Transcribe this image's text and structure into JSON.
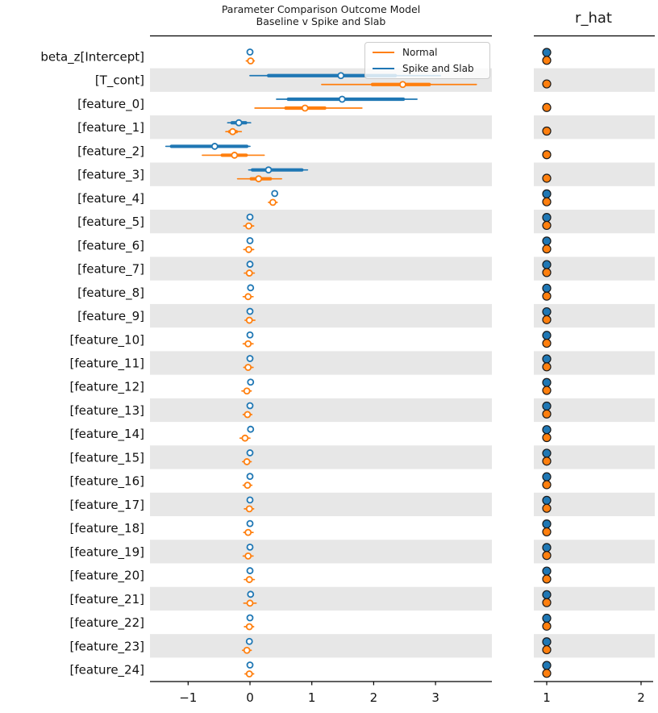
{
  "chart_data": {
    "type": "forest",
    "title_line1": "Parameter Comparison Outcome Model",
    "title_line2": "Baseline v Spike and Slab",
    "right_panel_title": "r_hat",
    "series": [
      {
        "key": "normal",
        "name": "Normal",
        "color": "#ff7f0e"
      },
      {
        "key": "spike",
        "name": "Spike and Slab",
        "color": "#1f77b4"
      }
    ],
    "band_color": "#e7e7e7",
    "left_axis": {
      "ticks": [
        -1,
        0,
        1,
        2,
        3
      ],
      "xlim": [
        -1.62,
        3.92
      ]
    },
    "right_axis": {
      "ticks": [
        1,
        2
      ],
      "xlim": [
        0.86,
        2.13
      ]
    },
    "rows": [
      {
        "label": "beta_z[Intercept]",
        "spike": {
          "median": 0.0,
          "ci": [
            -0.03,
            0.03
          ],
          "iqr": [
            -0.01,
            0.01
          ],
          "r_hat": 1.0
        },
        "normal": {
          "median": 0.01,
          "ci": [
            -0.06,
            0.07
          ],
          "iqr": [
            -0.02,
            0.03
          ],
          "r_hat": 1.0
        }
      },
      {
        "label": "[T_cont]",
        "spike": {
          "median": 1.47,
          "ci": [
            0.0,
            3.08
          ],
          "iqr": [
            0.3,
            2.35
          ],
          "r_hat": null
        },
        "normal": {
          "median": 2.47,
          "ci": [
            1.16,
            3.66
          ],
          "iqr": [
            1.98,
            2.9
          ],
          "r_hat": 1.0
        }
      },
      {
        "label": "[feature_0]",
        "spike": {
          "median": 1.49,
          "ci": [
            0.43,
            2.7
          ],
          "iqr": [
            0.62,
            2.48
          ],
          "r_hat": null
        },
        "normal": {
          "median": 0.89,
          "ci": [
            0.08,
            1.81
          ],
          "iqr": [
            0.58,
            1.21
          ],
          "r_hat": 1.0
        }
      },
      {
        "label": "[feature_1]",
        "spike": {
          "median": -0.18,
          "ci": [
            -0.36,
            0.01
          ],
          "iqr": [
            -0.29,
            -0.07
          ],
          "r_hat": null
        },
        "normal": {
          "median": -0.28,
          "ci": [
            -0.39,
            -0.14
          ],
          "iqr": [
            -0.33,
            -0.22
          ],
          "r_hat": 1.0
        }
      },
      {
        "label": "[feature_2]",
        "spike": {
          "median": -0.57,
          "ci": [
            -1.36,
            0.0
          ],
          "iqr": [
            -1.27,
            -0.05
          ],
          "r_hat": null
        },
        "normal": {
          "median": -0.25,
          "ci": [
            -0.77,
            0.23
          ],
          "iqr": [
            -0.45,
            -0.06
          ],
          "r_hat": 1.0
        }
      },
      {
        "label": "[feature_3]",
        "spike": {
          "median": 0.3,
          "ci": [
            -0.02,
            0.93
          ],
          "iqr": [
            0.04,
            0.84
          ],
          "r_hat": null
        },
        "normal": {
          "median": 0.14,
          "ci": [
            -0.2,
            0.51
          ],
          "iqr": [
            0.02,
            0.33
          ],
          "r_hat": 1.0
        }
      },
      {
        "label": "[feature_4]",
        "spike": {
          "median": 0.4,
          "ci": [
            0.37,
            0.43
          ],
          "iqr": [
            0.39,
            0.41
          ],
          "r_hat": 1.0
        },
        "normal": {
          "median": 0.37,
          "ci": [
            0.3,
            0.44
          ],
          "iqr": [
            0.34,
            0.4
          ],
          "r_hat": 1.0
        }
      },
      {
        "label": "[feature_5]",
        "spike": {
          "median": 0.0,
          "ci": [
            -0.03,
            0.03
          ],
          "iqr": [
            -0.01,
            0.01
          ],
          "r_hat": 1.0
        },
        "normal": {
          "median": -0.02,
          "ci": [
            -0.1,
            0.06
          ],
          "iqr": [
            -0.04,
            0.0
          ],
          "r_hat": 1.0
        }
      },
      {
        "label": "[feature_6]",
        "spike": {
          "median": 0.0,
          "ci": [
            -0.03,
            0.03
          ],
          "iqr": [
            -0.01,
            0.01
          ],
          "r_hat": 1.0
        },
        "normal": {
          "median": -0.02,
          "ci": [
            -0.1,
            0.06
          ],
          "iqr": [
            -0.04,
            0.0
          ],
          "r_hat": 1.0
        }
      },
      {
        "label": "[feature_7]",
        "spike": {
          "median": 0.0,
          "ci": [
            -0.03,
            0.03
          ],
          "iqr": [
            -0.01,
            0.01
          ],
          "r_hat": 1.0
        },
        "normal": {
          "median": -0.01,
          "ci": [
            -0.09,
            0.07
          ],
          "iqr": [
            -0.03,
            0.01
          ],
          "r_hat": 1.0
        }
      },
      {
        "label": "[feature_8]",
        "spike": {
          "median": 0.01,
          "ci": [
            -0.02,
            0.04
          ],
          "iqr": [
            0.0,
            0.02
          ],
          "r_hat": 1.0
        },
        "normal": {
          "median": -0.03,
          "ci": [
            -0.11,
            0.05
          ],
          "iqr": [
            -0.05,
            -0.01
          ],
          "r_hat": 1.0
        }
      },
      {
        "label": "[feature_9]",
        "spike": {
          "median": 0.0,
          "ci": [
            -0.03,
            0.03
          ],
          "iqr": [
            -0.01,
            0.01
          ],
          "r_hat": 1.0
        },
        "normal": {
          "median": -0.01,
          "ci": [
            -0.08,
            0.08
          ],
          "iqr": [
            -0.03,
            0.01
          ],
          "r_hat": 1.0
        }
      },
      {
        "label": "[feature_10]",
        "spike": {
          "median": 0.0,
          "ci": [
            -0.03,
            0.03
          ],
          "iqr": [
            -0.01,
            0.01
          ],
          "r_hat": 1.0
        },
        "normal": {
          "median": -0.03,
          "ci": [
            -0.11,
            0.05
          ],
          "iqr": [
            -0.05,
            -0.01
          ],
          "r_hat": 1.0
        }
      },
      {
        "label": "[feature_11]",
        "spike": {
          "median": 0.0,
          "ci": [
            -0.03,
            0.03
          ],
          "iqr": [
            -0.01,
            0.01
          ],
          "r_hat": 1.0
        },
        "normal": {
          "median": -0.03,
          "ci": [
            -0.1,
            0.05
          ],
          "iqr": [
            -0.05,
            -0.01
          ],
          "r_hat": 1.0
        }
      },
      {
        "label": "[feature_12]",
        "spike": {
          "median": 0.01,
          "ci": [
            -0.02,
            0.04
          ],
          "iqr": [
            0.0,
            0.02
          ],
          "r_hat": 1.0
        },
        "normal": {
          "median": -0.05,
          "ci": [
            -0.13,
            0.02
          ],
          "iqr": [
            -0.07,
            -0.03
          ],
          "r_hat": 1.0
        }
      },
      {
        "label": "[feature_13]",
        "spike": {
          "median": 0.0,
          "ci": [
            -0.03,
            0.03
          ],
          "iqr": [
            -0.01,
            0.01
          ],
          "r_hat": 1.0
        },
        "normal": {
          "median": -0.04,
          "ci": [
            -0.11,
            0.03
          ],
          "iqr": [
            -0.06,
            -0.02
          ],
          "r_hat": 1.0
        }
      },
      {
        "label": "[feature_14]",
        "spike": {
          "median": 0.01,
          "ci": [
            -0.02,
            0.04
          ],
          "iqr": [
            0.0,
            0.02
          ],
          "r_hat": 1.0
        },
        "normal": {
          "median": -0.08,
          "ci": [
            -0.16,
            0.0
          ],
          "iqr": [
            -0.1,
            -0.06
          ],
          "r_hat": 1.0
        }
      },
      {
        "label": "[feature_15]",
        "spike": {
          "median": 0.0,
          "ci": [
            -0.03,
            0.03
          ],
          "iqr": [
            -0.01,
            0.01
          ],
          "r_hat": 1.0
        },
        "normal": {
          "median": -0.05,
          "ci": [
            -0.12,
            0.02
          ],
          "iqr": [
            -0.07,
            -0.03
          ],
          "r_hat": 1.0
        }
      },
      {
        "label": "[feature_16]",
        "spike": {
          "median": 0.0,
          "ci": [
            -0.03,
            0.03
          ],
          "iqr": [
            -0.01,
            0.01
          ],
          "r_hat": 1.0
        },
        "normal": {
          "median": -0.04,
          "ci": [
            -0.11,
            0.03
          ],
          "iqr": [
            -0.06,
            -0.02
          ],
          "r_hat": 1.0
        }
      },
      {
        "label": "[feature_17]",
        "spike": {
          "median": 0.0,
          "ci": [
            -0.03,
            0.03
          ],
          "iqr": [
            -0.01,
            0.01
          ],
          "r_hat": 1.0
        },
        "normal": {
          "median": -0.01,
          "ci": [
            -0.09,
            0.06
          ],
          "iqr": [
            -0.03,
            0.01
          ],
          "r_hat": 1.0
        }
      },
      {
        "label": "[feature_18]",
        "spike": {
          "median": 0.0,
          "ci": [
            -0.03,
            0.03
          ],
          "iqr": [
            -0.01,
            0.01
          ],
          "r_hat": 1.0
        },
        "normal": {
          "median": -0.03,
          "ci": [
            -0.1,
            0.05
          ],
          "iqr": [
            -0.05,
            -0.01
          ],
          "r_hat": 1.0
        }
      },
      {
        "label": "[feature_19]",
        "spike": {
          "median": 0.0,
          "ci": [
            -0.03,
            0.03
          ],
          "iqr": [
            -0.01,
            0.01
          ],
          "r_hat": 1.0
        },
        "normal": {
          "median": -0.03,
          "ci": [
            -0.11,
            0.05
          ],
          "iqr": [
            -0.05,
            -0.01
          ],
          "r_hat": 1.0
        }
      },
      {
        "label": "[feature_20]",
        "spike": {
          "median": 0.0,
          "ci": [
            -0.03,
            0.03
          ],
          "iqr": [
            -0.01,
            0.01
          ],
          "r_hat": 1.0
        },
        "normal": {
          "median": -0.01,
          "ci": [
            -0.09,
            0.07
          ],
          "iqr": [
            -0.03,
            0.01
          ],
          "r_hat": 1.0
        }
      },
      {
        "label": "[feature_21]",
        "spike": {
          "median": 0.01,
          "ci": [
            -0.02,
            0.04
          ],
          "iqr": [
            0.0,
            0.02
          ],
          "r_hat": 1.0
        },
        "normal": {
          "median": 0.0,
          "ci": [
            -0.1,
            0.1
          ],
          "iqr": [
            -0.02,
            0.02
          ],
          "r_hat": 1.0
        }
      },
      {
        "label": "[feature_22]",
        "spike": {
          "median": 0.0,
          "ci": [
            -0.03,
            0.03
          ],
          "iqr": [
            -0.01,
            0.01
          ],
          "r_hat": 1.0
        },
        "normal": {
          "median": -0.01,
          "ci": [
            -0.09,
            0.06
          ],
          "iqr": [
            -0.03,
            0.01
          ],
          "r_hat": 1.0
        }
      },
      {
        "label": "[feature_23]",
        "spike": {
          "median": -0.01,
          "ci": [
            -0.04,
            0.02
          ],
          "iqr": [
            -0.02,
            0.0
          ],
          "r_hat": 1.0
        },
        "normal": {
          "median": -0.05,
          "ci": [
            -0.12,
            0.02
          ],
          "iqr": [
            -0.07,
            -0.03
          ],
          "r_hat": 1.0
        }
      },
      {
        "label": "[feature_24]",
        "spike": {
          "median": 0.0,
          "ci": [
            -0.03,
            0.03
          ],
          "iqr": [
            -0.01,
            0.01
          ],
          "r_hat": 1.0
        },
        "normal": {
          "median": -0.01,
          "ci": [
            -0.08,
            0.06
          ],
          "iqr": [
            -0.03,
            0.01
          ],
          "r_hat": 1.0
        }
      }
    ]
  }
}
